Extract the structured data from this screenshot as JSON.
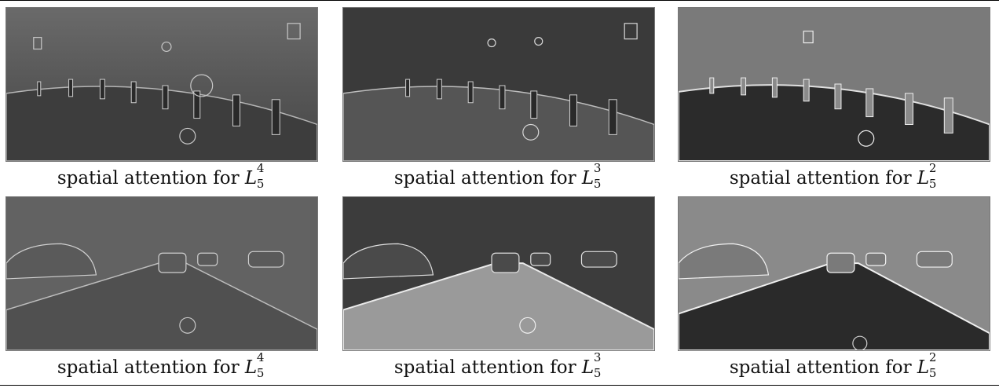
{
  "figure": {
    "rows": [
      {
        "panels": [
          {
            "caption_text": "spatial attention for",
            "symbol": "L",
            "sub": "5",
            "sup": "4",
            "tone": "mid"
          },
          {
            "caption_text": "spatial attention for",
            "symbol": "L",
            "sub": "5",
            "sup": "3",
            "tone": "dark"
          },
          {
            "caption_text": "spatial attention for",
            "symbol": "L",
            "sub": "5",
            "sup": "2",
            "tone": "light"
          }
        ]
      },
      {
        "panels": [
          {
            "caption_text": "spatial attention for",
            "symbol": "L",
            "sub": "5",
            "sup": "4",
            "tone": "mid"
          },
          {
            "caption_text": "spatial attention for",
            "symbol": "L",
            "sub": "5",
            "sup": "3",
            "tone": "bright-road"
          },
          {
            "caption_text": "spatial attention for",
            "symbol": "L",
            "sub": "5",
            "sup": "2",
            "tone": "dark-road"
          }
        ]
      }
    ]
  }
}
